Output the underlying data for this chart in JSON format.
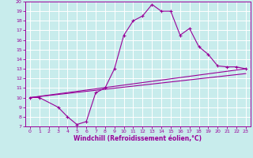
{
  "xlabel": "Windchill (Refroidissement éolien,°C)",
  "xlim": [
    -0.5,
    23.5
  ],
  "ylim": [
    7,
    20
  ],
  "xticks": [
    0,
    1,
    2,
    3,
    4,
    5,
    6,
    7,
    8,
    9,
    10,
    11,
    12,
    13,
    14,
    15,
    16,
    17,
    18,
    19,
    20,
    21,
    22,
    23
  ],
  "yticks": [
    7,
    8,
    9,
    10,
    11,
    12,
    13,
    14,
    15,
    16,
    17,
    18,
    19,
    20
  ],
  "bg_color": "#c8ecec",
  "line_color": "#990099",
  "grid_color": "#ffffff",
  "line1_x": [
    0,
    1,
    3,
    4,
    5,
    6,
    7,
    8,
    9,
    10,
    11,
    12,
    13,
    14,
    15,
    16,
    17,
    18,
    19,
    20,
    21,
    22,
    23
  ],
  "line1_y": [
    10,
    10,
    9,
    8,
    7.2,
    7.5,
    10.5,
    11,
    13,
    16.5,
    18,
    18.5,
    19.7,
    19,
    19,
    16.5,
    17.2,
    15.3,
    14.5,
    13.3,
    13.2,
    13.2,
    13
  ],
  "line2_x": [
    0,
    23
  ],
  "line2_y": [
    10,
    13
  ],
  "line3_x": [
    0,
    23
  ],
  "line3_y": [
    10,
    12.5
  ],
  "marker": "+"
}
